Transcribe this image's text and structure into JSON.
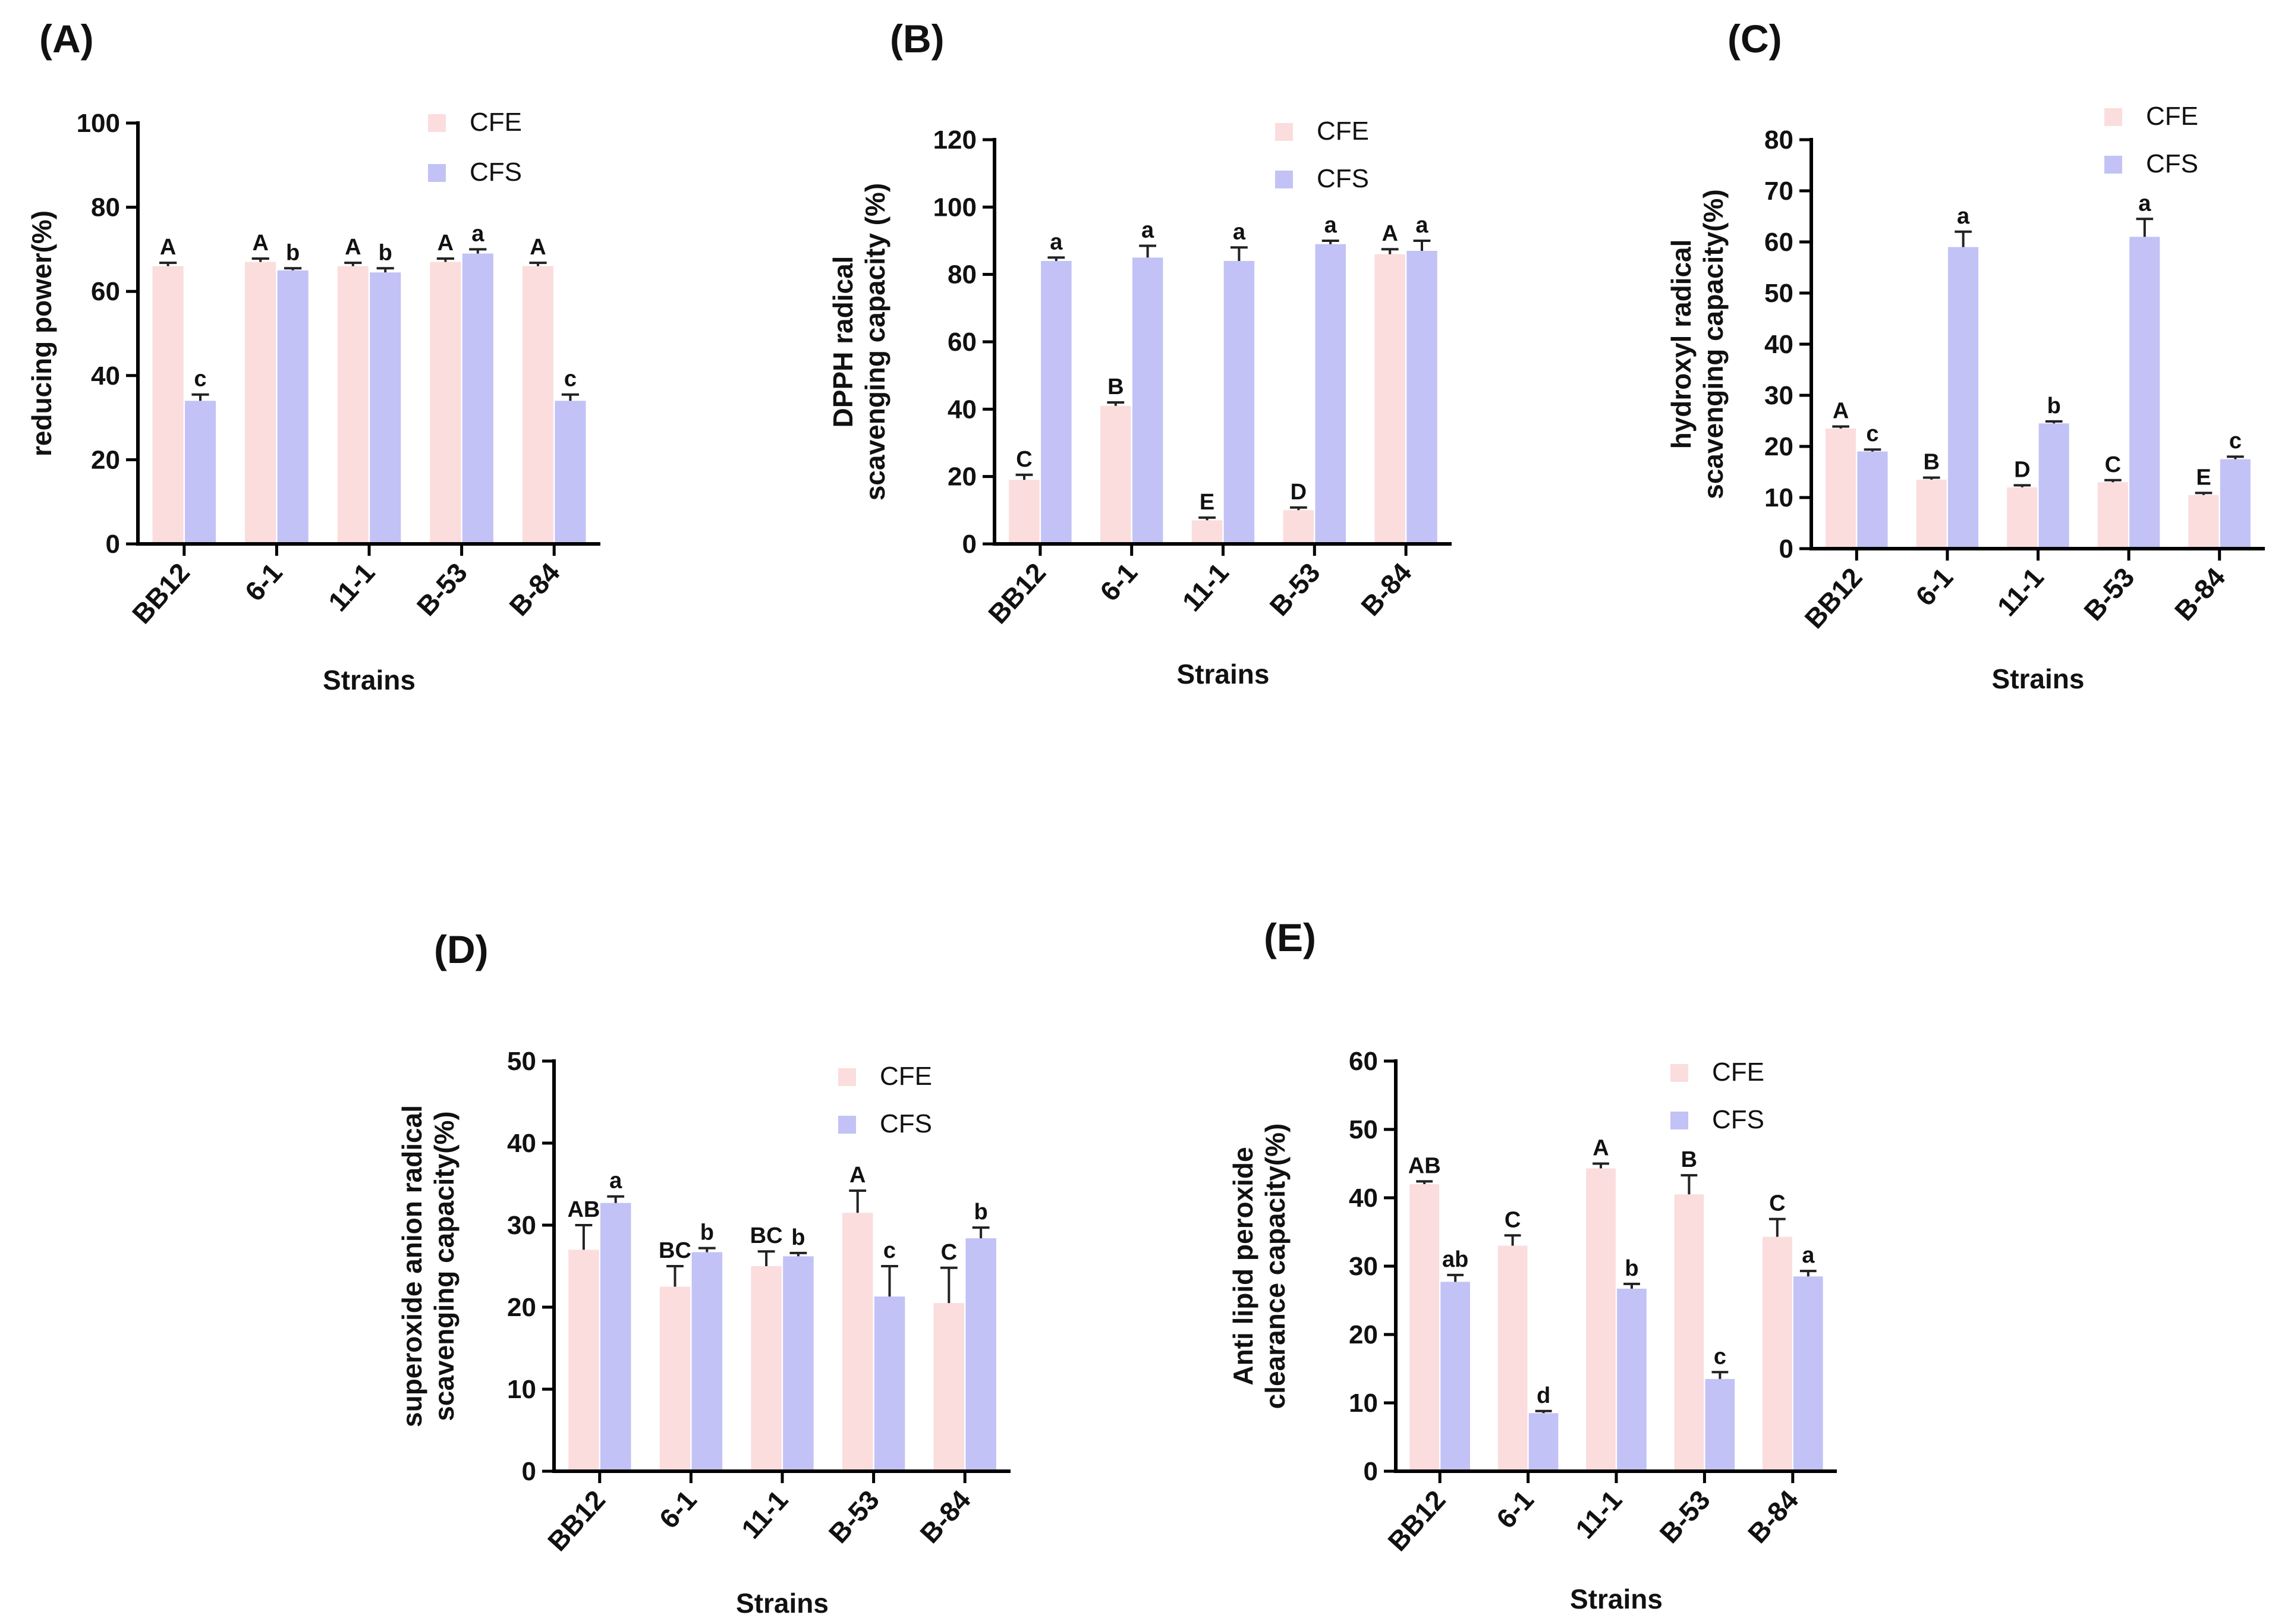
{
  "figure": {
    "panels": [
      "(A)",
      "(B)",
      "(C)",
      "(D)",
      "(E)"
    ]
  },
  "colors": {
    "CFE": "#fbdddd",
    "CFS": "#c2c2f6",
    "axis": "#000000"
  },
  "chart_data": [
    {
      "id": "A",
      "panel_label": "(A)",
      "type": "bar",
      "title": "",
      "xlabel": "Strains",
      "ylabel": "reducing  power(%)",
      "ylim": [
        0,
        100
      ],
      "yticks": [
        0,
        20,
        40,
        60,
        80,
        100
      ],
      "categories": [
        "BB12",
        "6-1",
        "11-1",
        "B-53",
        "B-84"
      ],
      "legend": {
        "position": "top-right"
      },
      "series": [
        {
          "name": "CFE",
          "values": [
            66,
            67,
            66,
            67,
            66
          ],
          "errors": [
            0.8,
            0.8,
            0.8,
            0.8,
            0.8
          ],
          "labels": [
            "A",
            "A",
            "A",
            "A",
            "A"
          ]
        },
        {
          "name": "CFS",
          "values": [
            34,
            65,
            64.5,
            69,
            34
          ],
          "errors": [
            1.5,
            0.5,
            1,
            1,
            1.5
          ],
          "labels": [
            "c",
            "b",
            "b",
            "a",
            "c"
          ]
        }
      ]
    },
    {
      "id": "B",
      "panel_label": "(B)",
      "type": "bar",
      "title": "",
      "xlabel": "Strains",
      "ylabel": [
        "DPPH radical",
        "scavenging capacity (%)"
      ],
      "ylim": [
        0,
        120
      ],
      "yticks": [
        0,
        20,
        40,
        60,
        80,
        100,
        120
      ],
      "categories": [
        "BB12",
        "6-1",
        "11-1",
        "B-53",
        "B-84"
      ],
      "legend": {
        "position": "top-right"
      },
      "series": [
        {
          "name": "CFE",
          "values": [
            19,
            41,
            7,
            10,
            86
          ],
          "errors": [
            1.5,
            1,
            0.8,
            0.8,
            1.5
          ],
          "labels": [
            "C",
            "B",
            "E",
            "D",
            "A"
          ]
        },
        {
          "name": "CFS",
          "values": [
            84,
            85,
            84,
            89,
            87
          ],
          "errors": [
            1,
            3.5,
            4,
            1,
            3
          ],
          "labels": [
            "a",
            "a",
            "a",
            "a",
            "a"
          ]
        }
      ]
    },
    {
      "id": "C",
      "panel_label": "(C)",
      "type": "bar",
      "title": "",
      "xlabel": "Strains",
      "ylabel": [
        "hydroxyl radical",
        "scavenging capacity(%)"
      ],
      "ylim": [
        0,
        80
      ],
      "yticks": [
        0,
        10,
        20,
        30,
        40,
        50,
        60,
        70,
        80
      ],
      "categories": [
        "BB12",
        "6-1",
        "11-1",
        "B-53",
        "B-84"
      ],
      "legend": {
        "position": "top-right"
      },
      "series": [
        {
          "name": "CFE",
          "values": [
            23.5,
            13.5,
            12,
            13,
            10.5
          ],
          "errors": [
            0.4,
            0.4,
            0.4,
            0.4,
            0.4
          ],
          "labels": [
            "A",
            "B",
            "D",
            "C",
            "E"
          ]
        },
        {
          "name": "CFS",
          "values": [
            19,
            59,
            24.5,
            61,
            17.5
          ],
          "errors": [
            0.4,
            3,
            0.4,
            3.5,
            0.5
          ],
          "labels": [
            "c",
            "a",
            "b",
            "a",
            "c"
          ]
        }
      ]
    },
    {
      "id": "D",
      "panel_label": "(D)",
      "type": "bar",
      "title": "",
      "xlabel": "Strains",
      "ylabel": [
        "superoxide anion radical",
        "scavenging capacity(%)"
      ],
      "ylim": [
        0,
        50
      ],
      "yticks": [
        0,
        10,
        20,
        30,
        40,
        50
      ],
      "categories": [
        "BB12",
        "6-1",
        "11-1",
        "B-53",
        "B-84"
      ],
      "legend": {
        "position": "top-right"
      },
      "series": [
        {
          "name": "CFE",
          "values": [
            27,
            22.5,
            25,
            31.5,
            20.5
          ],
          "errors": [
            3,
            2.5,
            1.8,
            2.7,
            4.3
          ],
          "labels": [
            "AB",
            "BC",
            "BC",
            "A",
            "C"
          ]
        },
        {
          "name": "CFS",
          "values": [
            32.7,
            26.7,
            26.2,
            21.3,
            28.4
          ],
          "errors": [
            0.8,
            0.5,
            0.4,
            3.7,
            1.3
          ],
          "labels": [
            "a",
            "b",
            "b",
            "c",
            "b"
          ]
        }
      ]
    },
    {
      "id": "E",
      "panel_label": "(E)",
      "type": "bar",
      "title": "",
      "xlabel": "Strains",
      "ylabel": [
        "Anti lipid peroxide",
        "clearance capacity(%)"
      ],
      "ylim": [
        0,
        60
      ],
      "yticks": [
        0,
        10,
        20,
        30,
        40,
        50,
        60
      ],
      "categories": [
        "BB12",
        "6-1",
        "11-1",
        "B-53",
        "B-84"
      ],
      "legend": {
        "position": "top-right"
      },
      "series": [
        {
          "name": "CFE",
          "values": [
            42,
            33,
            44.3,
            40.5,
            34.3
          ],
          "errors": [
            0.4,
            1.5,
            0.7,
            2.8,
            2.6
          ],
          "labels": [
            "AB",
            "C",
            "A",
            "B",
            "C"
          ]
        },
        {
          "name": "CFS",
          "values": [
            27.7,
            8.5,
            26.7,
            13.5,
            28.5
          ],
          "errors": [
            1,
            0.3,
            0.7,
            1,
            0.8
          ],
          "labels": [
            "ab",
            "d",
            "b",
            "c",
            "a"
          ]
        }
      ]
    }
  ]
}
